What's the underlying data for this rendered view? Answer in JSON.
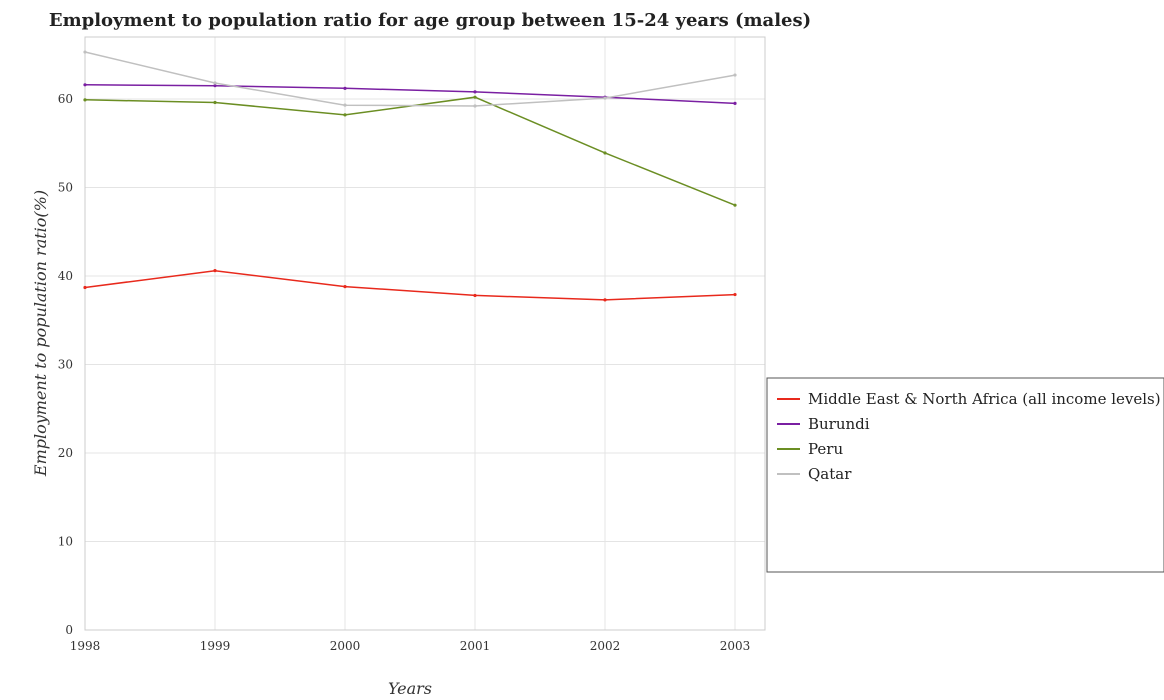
{
  "chart_data": {
    "type": "line",
    "title": "Employment to population ratio for age group between 15-24 years (males)",
    "xlabel": "Years",
    "ylabel": "Employment to population ratio(%)",
    "x": [
      "1998",
      "1999",
      "2000",
      "2001",
      "2002",
      "2003"
    ],
    "ylim": [
      0,
      67
    ],
    "yticks": [
      0,
      10,
      20,
      30,
      40,
      50,
      60
    ],
    "grid": true,
    "legend_position": "right",
    "series": [
      {
        "name": "Middle East & North Africa (all income levels)",
        "color": "#e8291c",
        "values": [
          38.7,
          40.6,
          38.8,
          37.8,
          37.3,
          37.9
        ]
      },
      {
        "name": "Burundi",
        "color": "#7a1fa2",
        "values": [
          61.6,
          61.5,
          61.2,
          60.8,
          60.2,
          59.5
        ]
      },
      {
        "name": "Peru",
        "color": "#6b8e23",
        "values": [
          59.9,
          59.6,
          58.2,
          60.2,
          53.9,
          48.0
        ]
      },
      {
        "name": "Qatar",
        "color": "#c0c0c0",
        "values": [
          65.3,
          61.8,
          59.3,
          59.2,
          60.1,
          62.7
        ]
      }
    ]
  }
}
